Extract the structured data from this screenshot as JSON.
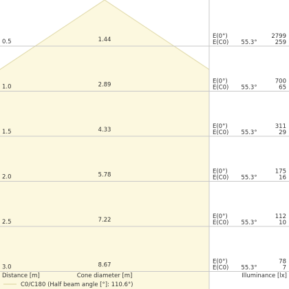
{
  "chart_data": {
    "type": "cone-diagram",
    "rows": [
      {
        "distance": "0.5",
        "diameter": "1.44",
        "e_max": "2799",
        "e_c0": "259",
        "angle": "55.3°"
      },
      {
        "distance": "1.0",
        "diameter": "2.89",
        "e_max": "700",
        "e_c0": "65",
        "angle": "55.3°"
      },
      {
        "distance": "1.5",
        "diameter": "4.33",
        "e_max": "311",
        "e_c0": "29",
        "angle": "55.3°"
      },
      {
        "distance": "2.0",
        "diameter": "5.78",
        "e_max": "175",
        "e_c0": "16",
        "angle": "55.3°"
      },
      {
        "distance": "2.5",
        "diameter": "7.22",
        "e_max": "112",
        "e_c0": "10",
        "angle": "55.3°"
      },
      {
        "distance": "3.0",
        "diameter": "8.67",
        "e_max": "78",
        "e_c0": "7",
        "angle": "55.3°"
      }
    ],
    "label_e0": "E(0°)",
    "label_ec0": "E(C0)",
    "xlabel_distance": "Distance [m]",
    "xlabel_diameter": "Cone diameter [m]",
    "xlabel_illuminance": "Illuminance [lx]",
    "legend": "C0/C180 (Half beam angle [°]: 110.6°)",
    "colors": {
      "fill": "#fcf8df",
      "edge": "#e3ddb0",
      "grid": "#c8c8c8",
      "text": "#333333"
    }
  }
}
